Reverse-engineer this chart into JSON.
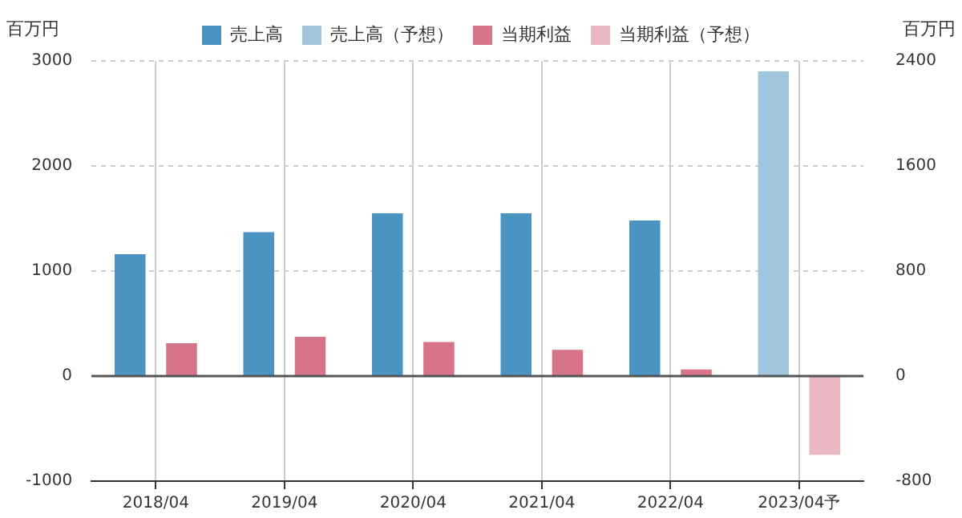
{
  "chart_data": {
    "type": "bar",
    "categories": [
      "2018/04",
      "2019/04",
      "2020/04",
      "2021/04",
      "2022/04",
      "2023/04予"
    ],
    "series": [
      {
        "name": "売上高",
        "color": "#4a93c2",
        "values": [
          1160,
          1370,
          1550,
          1550,
          1480,
          null
        ]
      },
      {
        "name": "売上高（予想）",
        "color": "#a0c6de",
        "values": [
          null,
          null,
          null,
          null,
          null,
          2900
        ]
      },
      {
        "name": "当期利益",
        "color": "#d67488",
        "axis": "y2",
        "values": [
          250,
          300,
          260,
          200,
          50,
          null
        ]
      },
      {
        "name": "当期利益（予想）",
        "color": "#eab8c3",
        "axis": "y2",
        "values": [
          null,
          null,
          null,
          null,
          null,
          -600
        ]
      }
    ],
    "ylabel": "百万円",
    "y2label": "百万円",
    "ylim": [
      -1000,
      3000
    ],
    "yticks": [
      -1000,
      0,
      1000,
      2000,
      3000
    ],
    "y2lim": [
      -800,
      2400
    ],
    "y2ticks": [
      -800,
      0,
      800,
      1600,
      2400
    ],
    "ref_lines": [
      {
        "axis": "y",
        "value": 0,
        "color": "#555555",
        "line_style": "solid"
      }
    ],
    "grid": true,
    "legend": "top"
  }
}
